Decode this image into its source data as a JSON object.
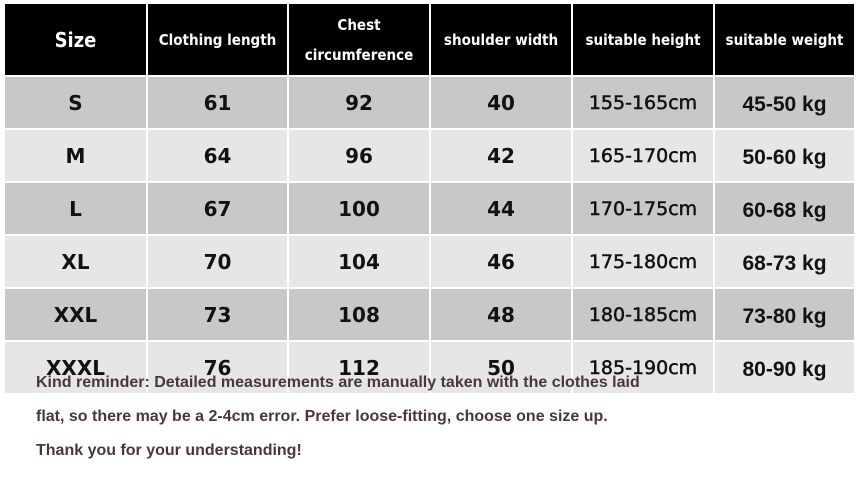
{
  "headers": [
    "Size",
    "Clothing length",
    "Chest circumference",
    "shoulder width",
    "suitable height",
    "suitable weight"
  ],
  "rows": [
    [
      "S",
      "61",
      "92",
      "40",
      "155-165cm",
      "45-50 kg"
    ],
    [
      "M",
      "64",
      "96",
      "42",
      "165-170cm",
      "50-60 kg"
    ],
    [
      "L",
      "67",
      "100",
      "44",
      "170-175cm",
      "60-68 kg"
    ],
    [
      "XL",
      "70",
      "104",
      "46",
      "175-180cm",
      "68-73 kg"
    ],
    [
      "XXL",
      "73",
      "108",
      "48",
      "180-185cm",
      "73-80 kg"
    ],
    [
      "XXXL",
      "76",
      "112",
      "50",
      "185-190cm",
      "80-90 kg"
    ]
  ],
  "notes": [
    "Kind reminder: Detailed measurements are manually taken with the clothes laid",
    "flat, so there may be a 2-4cm error. Prefer loose-fitting, choose one size up.",
    "Thank you for your understanding!"
  ],
  "colors": {
    "header_bg": "#000000",
    "row_dark": "#c8c8c8",
    "row_light": "#e6e6e6",
    "note_text": "#4a3838"
  }
}
